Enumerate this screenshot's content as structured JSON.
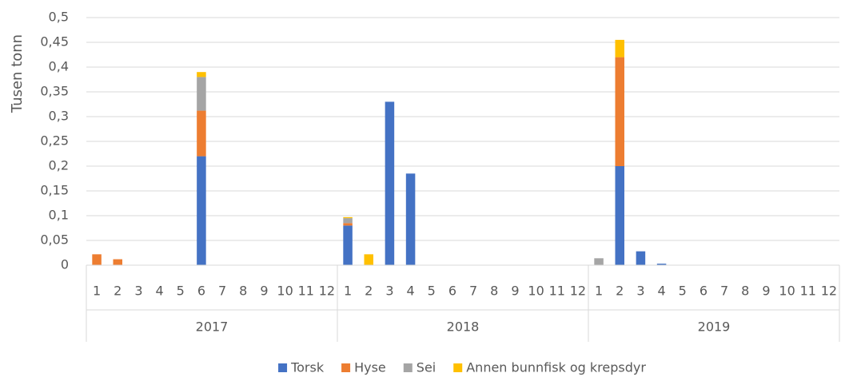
{
  "chart_data": {
    "type": "stacked-bar",
    "y_label": "Tusen tonn",
    "categories": [
      "1",
      "2",
      "3",
      "4",
      "5",
      "6",
      "7",
      "8",
      "9",
      "10",
      "11",
      "12",
      "1",
      "2",
      "3",
      "4",
      "5",
      "6",
      "7",
      "8",
      "9",
      "10",
      "11",
      "12",
      "1",
      "2",
      "3",
      "4",
      "5",
      "6",
      "7",
      "8",
      "9",
      "10",
      "11",
      "12"
    ],
    "groups": [
      "2017",
      "2018",
      "2019"
    ],
    "series": [
      {
        "name": "Torsk",
        "color": "#4472c4",
        "values": [
          0,
          0,
          0,
          0,
          0,
          0.22,
          0,
          0,
          0,
          0,
          0,
          0,
          0.08,
          0,
          0.33,
          0.185,
          0,
          0,
          0,
          0,
          0,
          0,
          0,
          0,
          0,
          0.2,
          0.028,
          0.003,
          0,
          0,
          0,
          0,
          0,
          0,
          0,
          0
        ]
      },
      {
        "name": "Hyse",
        "color": "#ed7d31",
        "values": [
          0.022,
          0.012,
          0,
          0,
          0,
          0.092,
          0,
          0,
          0,
          0,
          0,
          0,
          0.005,
          0,
          0,
          0,
          0,
          0,
          0,
          0,
          0,
          0,
          0,
          0,
          0,
          0.22,
          0,
          0,
          0,
          0,
          0,
          0,
          0,
          0,
          0,
          0
        ]
      },
      {
        "name": "Sei",
        "color": "#a5a5a5",
        "values": [
          0,
          0,
          0,
          0,
          0,
          0.068,
          0,
          0,
          0,
          0,
          0,
          0,
          0.01,
          0,
          0,
          0,
          0,
          0,
          0,
          0,
          0,
          0,
          0,
          0,
          0.014,
          0,
          0,
          0,
          0,
          0,
          0,
          0,
          0,
          0,
          0,
          0
        ]
      },
      {
        "name": "Annen bunnfisk og krepsdyr",
        "color": "#ffc000",
        "values": [
          0,
          0,
          0,
          0,
          0,
          0.01,
          0,
          0,
          0,
          0,
          0,
          0,
          0.002,
          0.022,
          0,
          0,
          0,
          0,
          0,
          0,
          0,
          0,
          0,
          0,
          0,
          0.035,
          0,
          0,
          0,
          0,
          0,
          0,
          0,
          0,
          0,
          0
        ]
      }
    ],
    "ylim": [
      0,
      0.5
    ],
    "yticks": [
      0,
      {
        "value": 0.05,
        "label": "0,05"
      },
      {
        "value": 0.1,
        "label": "0,1"
      },
      {
        "value": 0.15,
        "label": "0,15"
      },
      {
        "value": 0.2,
        "label": "0,2"
      },
      {
        "value": 0.25,
        "label": "0,25"
      },
      {
        "value": 0.3,
        "label": "0,3"
      },
      {
        "value": 0.35,
        "label": "0,35"
      },
      {
        "value": 0.4,
        "label": "0,4"
      },
      {
        "value": 0.45,
        "label": "0,45"
      },
      {
        "value": 0.5,
        "label": "0,5"
      }
    ],
    "grid": true,
    "legend": "bottom"
  }
}
